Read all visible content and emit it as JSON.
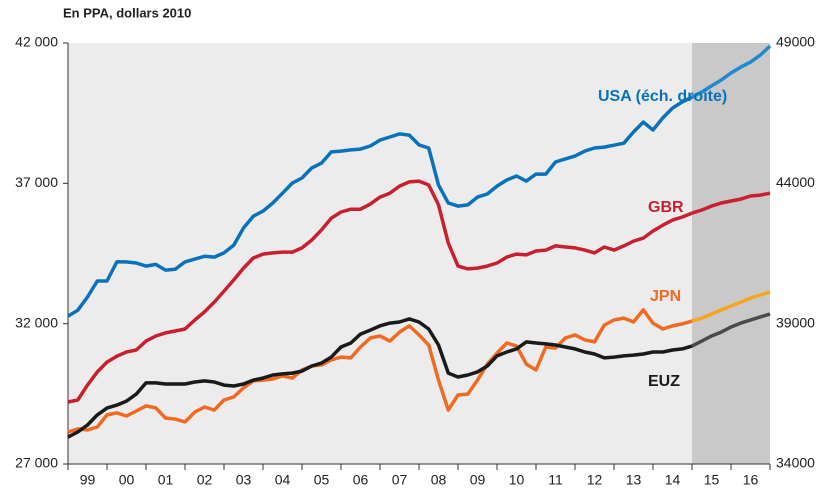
{
  "chart_data": {
    "type": "line",
    "title": "En PPA, dollars 2010",
    "x": [
      1999,
      1999.25,
      1999.5,
      1999.75,
      2000,
      2000.25,
      2000.5,
      2000.75,
      2001,
      2001.25,
      2001.5,
      2001.75,
      2002,
      2002.25,
      2002.5,
      2002.75,
      2003,
      2003.25,
      2003.5,
      2003.75,
      2004,
      2004.25,
      2004.5,
      2004.75,
      2005,
      2005.25,
      2005.5,
      2005.75,
      2006,
      2006.25,
      2006.5,
      2006.75,
      2007,
      2007.25,
      2007.5,
      2007.75,
      2008,
      2008.25,
      2008.5,
      2008.75,
      2009,
      2009.25,
      2009.5,
      2009.75,
      2010,
      2010.25,
      2010.5,
      2010.75,
      2011,
      2011.25,
      2011.5,
      2011.75,
      2012,
      2012.25,
      2012.5,
      2012.75,
      2013,
      2013.25,
      2013.5,
      2013.75,
      2014,
      2014.25,
      2014.5,
      2014.75,
      2015,
      2015.25,
      2015.5,
      2015.75,
      2016,
      2016.25,
      2016.5,
      2016.75,
      2017
    ],
    "xlim": [
      1999,
      2017
    ],
    "xticks": [
      {
        "value": 1999.5,
        "label": "99"
      },
      {
        "value": 2000.5,
        "label": "00"
      },
      {
        "value": 2001.5,
        "label": "01"
      },
      {
        "value": 2002.5,
        "label": "02"
      },
      {
        "value": 2003.5,
        "label": "03"
      },
      {
        "value": 2004.5,
        "label": "04"
      },
      {
        "value": 2005.5,
        "label": "05"
      },
      {
        "value": 2006.5,
        "label": "06"
      },
      {
        "value": 2007.5,
        "label": "07"
      },
      {
        "value": 2008.5,
        "label": "08"
      },
      {
        "value": 2009.5,
        "label": "09"
      },
      {
        "value": 2010.5,
        "label": "10"
      },
      {
        "value": 2011.5,
        "label": "11"
      },
      {
        "value": 2012.5,
        "label": "12"
      },
      {
        "value": 2013.5,
        "label": "13"
      },
      {
        "value": 2014.5,
        "label": "14"
      },
      {
        "value": 2015.5,
        "label": "15"
      },
      {
        "value": 2016.5,
        "label": "16"
      }
    ],
    "xminorticks": [
      1999,
      2000,
      2001,
      2002,
      2003,
      2004,
      2005,
      2006,
      2007,
      2008,
      2009,
      2010,
      2011,
      2012,
      2013,
      2014,
      2015,
      2016,
      2017
    ],
    "ylim": [
      27000,
      42000
    ],
    "yticks": [
      {
        "value": 27000,
        "label": "27 000"
      },
      {
        "value": 32000,
        "label": "32 000"
      },
      {
        "value": 37000,
        "label": "37 000"
      },
      {
        "value": 42000,
        "label": "42 000"
      }
    ],
    "y2lim": [
      34000,
      49000
    ],
    "y2ticks": [
      34000,
      39000,
      44000,
      49000
    ],
    "forecast_from": 2015,
    "shade_color": "#c9c9c9",
    "background": "#ececec",
    "series": [
      {
        "name": "USA (éch. droite)",
        "axis": "y2",
        "color": "#0a72ba",
        "forecast_color": "#1e8ad0",
        "values": [
          39270,
          39480,
          39950,
          40520,
          40520,
          41200,
          41200,
          41160,
          41050,
          41110,
          40910,
          40940,
          41200,
          41300,
          41400,
          41370,
          41520,
          41800,
          42410,
          42830,
          43010,
          43300,
          43650,
          44010,
          44190,
          44550,
          44720,
          45120,
          45150,
          45190,
          45220,
          45330,
          45540,
          45650,
          45760,
          45720,
          45370,
          45260,
          43940,
          43300,
          43190,
          43230,
          43510,
          43620,
          43900,
          44120,
          44260,
          44080,
          44330,
          44330,
          44760,
          44870,
          44970,
          45150,
          45260,
          45290,
          45360,
          45430,
          45830,
          46180,
          45900,
          46330,
          46680,
          46900,
          47070,
          47250,
          47470,
          47680,
          47930,
          48140,
          48320,
          48570,
          48890
        ]
      },
      {
        "name": "GBR",
        "color": "#c8202f",
        "forecast_color": "#c8202f",
        "values": [
          29210,
          29280,
          29810,
          30280,
          30630,
          30840,
          30990,
          31060,
          31380,
          31560,
          31670,
          31740,
          31810,
          32130,
          32420,
          32770,
          33160,
          33560,
          33980,
          34340,
          34480,
          34520,
          34550,
          34550,
          34700,
          34980,
          35340,
          35760,
          35980,
          36080,
          36080,
          36260,
          36510,
          36650,
          36900,
          37050,
          37080,
          36940,
          36230,
          34870,
          34050,
          33950,
          33980,
          34050,
          34160,
          34370,
          34480,
          34450,
          34590,
          34620,
          34770,
          34730,
          34700,
          34620,
          34520,
          34730,
          34620,
          34770,
          34940,
          35050,
          35300,
          35510,
          35690,
          35800,
          35940,
          36050,
          36190,
          36300,
          36370,
          36440,
          36550,
          36580,
          36650
        ]
      },
      {
        "name": "JPN",
        "color": "#f06a22",
        "forecast_color": "#f7a51e",
        "values": [
          28140,
          28250,
          28210,
          28320,
          28750,
          28820,
          28710,
          28890,
          29070,
          29000,
          28640,
          28600,
          28500,
          28850,
          29030,
          28920,
          29280,
          29390,
          29710,
          29960,
          29990,
          30030,
          30140,
          30060,
          30350,
          30490,
          30530,
          30710,
          30810,
          30780,
          31170,
          31490,
          31560,
          31380,
          31700,
          31920,
          31600,
          31240,
          29990,
          28920,
          29460,
          29490,
          29990,
          30560,
          30950,
          31310,
          31200,
          30560,
          30350,
          31170,
          31130,
          31490,
          31600,
          31420,
          31350,
          31950,
          32130,
          32200,
          32060,
          32490,
          32020,
          31810,
          31920,
          31990,
          32090,
          32200,
          32340,
          32490,
          32630,
          32770,
          32910,
          33020,
          33130
        ]
      },
      {
        "name": "EUZ",
        "color": "#1a1a1a",
        "forecast_color": "#4a4a4a",
        "values": [
          27960,
          28140,
          28390,
          28750,
          28990,
          29100,
          29240,
          29490,
          29890,
          29890,
          29850,
          29850,
          29850,
          29920,
          29960,
          29920,
          29810,
          29780,
          29850,
          29990,
          30060,
          30170,
          30210,
          30240,
          30310,
          30490,
          30600,
          30810,
          31170,
          31310,
          31630,
          31770,
          31920,
          32020,
          32060,
          32170,
          32060,
          31810,
          31240,
          30240,
          30100,
          30170,
          30280,
          30490,
          30850,
          30990,
          31100,
          31350,
          31310,
          31280,
          31240,
          31170,
          31100,
          30990,
          30920,
          30780,
          30810,
          30850,
          30880,
          30920,
          30990,
          30990,
          31060,
          31100,
          31200,
          31380,
          31560,
          31700,
          31880,
          32020,
          32130,
          32240,
          32340
        ]
      }
    ]
  }
}
